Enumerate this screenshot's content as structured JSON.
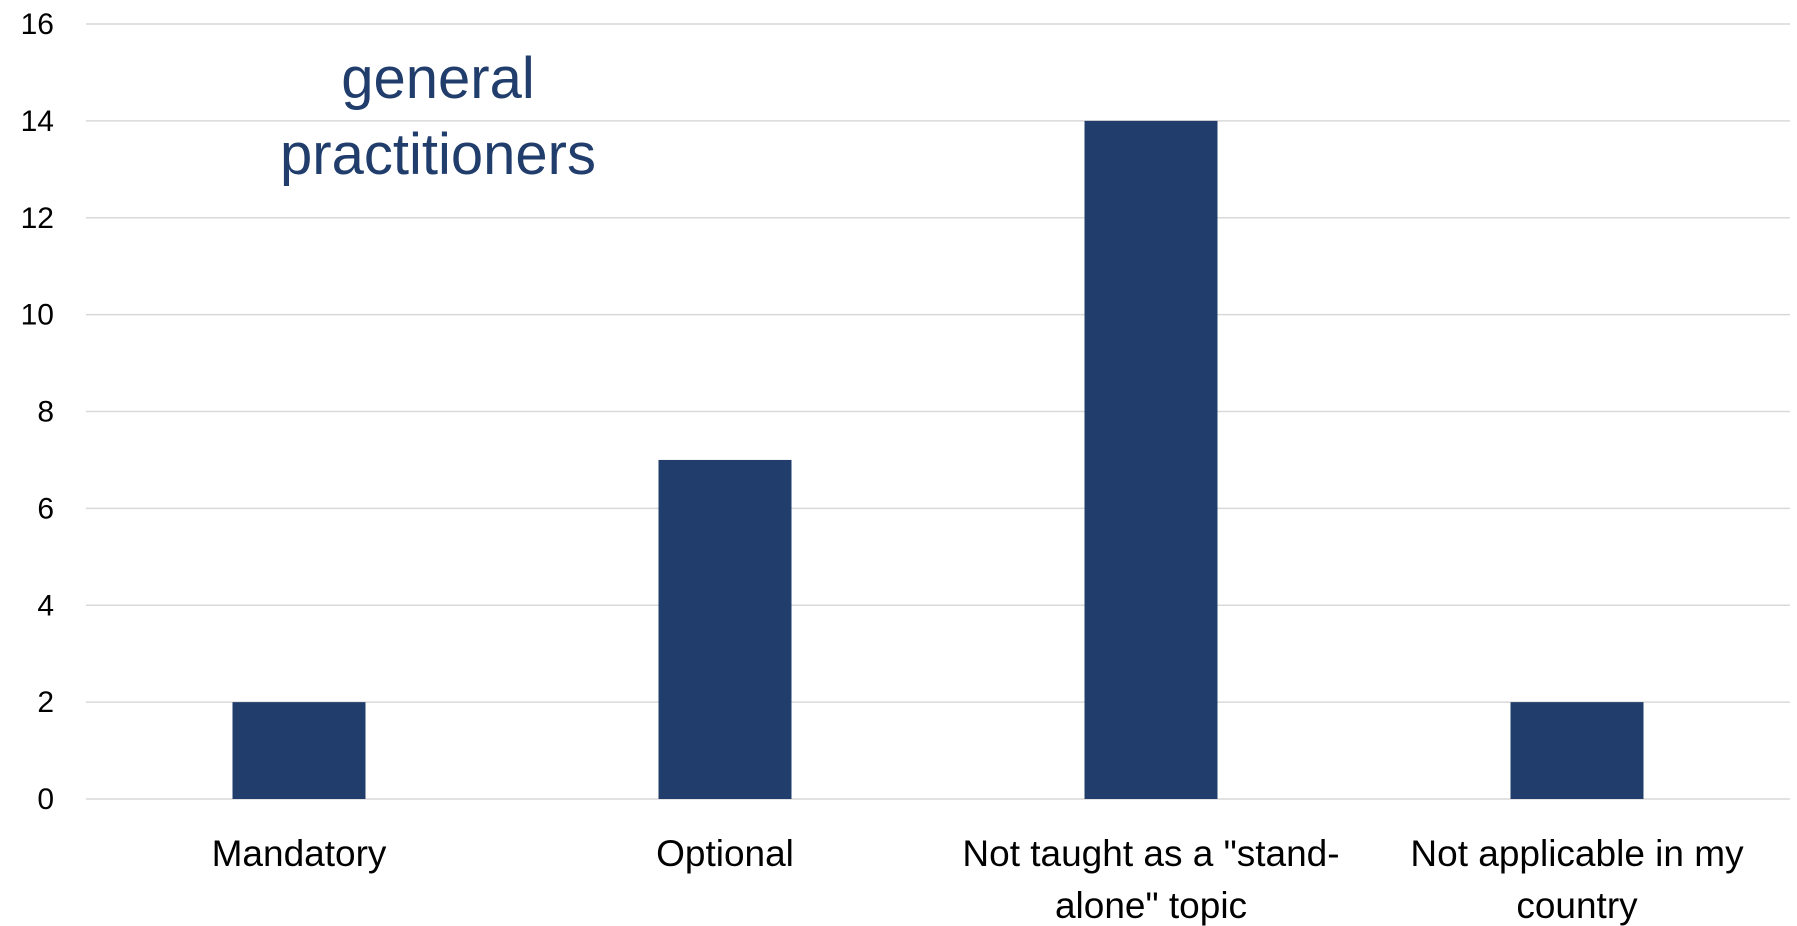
{
  "chart_data": {
    "type": "bar",
    "title_lines": [
      "general",
      "practitioners"
    ],
    "categories": [
      [
        "Mandatory"
      ],
      [
        "Optional"
      ],
      [
        "Not taught as a \"stand-",
        "alone\" topic"
      ],
      [
        "Not applicable in my",
        "country"
      ]
    ],
    "values": [
      2,
      7,
      14,
      2
    ],
    "ylim": [
      0,
      16
    ],
    "yticks": [
      "0",
      "2",
      "4",
      "6",
      "8",
      "10",
      "12",
      "14",
      "16"
    ],
    "grid": true,
    "bar_color": "#203d6c",
    "title_color": "#203d6c"
  }
}
